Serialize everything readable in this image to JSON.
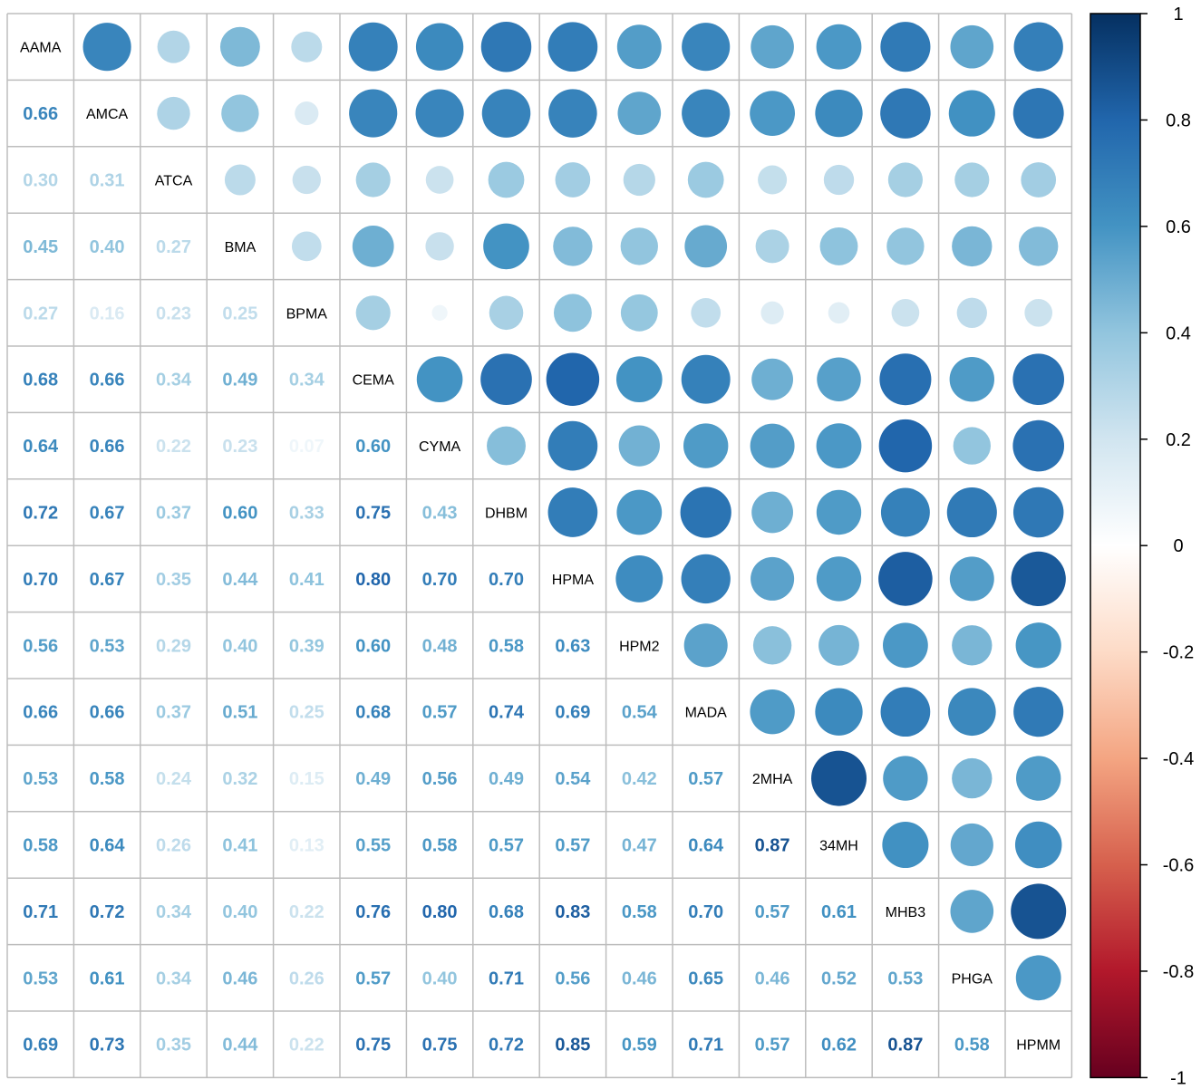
{
  "chart_data": {
    "type": "heatmap",
    "variables": [
      "AAMA",
      "AMCA",
      "ATCA",
      "BMA",
      "BPMA",
      "CEMA",
      "CYMA",
      "DHBM",
      "HPMA",
      "HPM2",
      "MADA",
      "2MHA",
      "34MH",
      "MHB3",
      "PHGA",
      "HPMM"
    ],
    "labels": [
      [],
      [
        "0.66"
      ],
      [
        "0.30",
        "0.31"
      ],
      [
        "0.45",
        "0.40",
        "0.27"
      ],
      [
        "0.27",
        "0.16",
        "0.23",
        "0.25"
      ],
      [
        "0.68",
        "0.66",
        "0.34",
        "0.49",
        "0.34"
      ],
      [
        "0.64",
        "0.66",
        "0.22",
        "0.23",
        "0.07",
        "0.60"
      ],
      [
        "0.72",
        "0.67",
        "0.37",
        "0.60",
        "0.33",
        "0.75",
        "0.43"
      ],
      [
        "0.70",
        "0.67",
        "0.35",
        "0.44",
        "0.41",
        "0.80",
        "0.70",
        "0.70"
      ],
      [
        "0.56",
        "0.53",
        "0.29",
        "0.40",
        "0.39",
        "0.60",
        "0.48",
        "0.58",
        "0.63"
      ],
      [
        "0.66",
        "0.66",
        "0.37",
        "0.51",
        "0.25",
        "0.68",
        "0.57",
        "0.74",
        "0.69",
        "0.54"
      ],
      [
        "0.53",
        "0.58",
        "0.24",
        "0.32",
        "0.15",
        "0.49",
        "0.56",
        "0.49",
        "0.54",
        "0.42",
        "0.57"
      ],
      [
        "0.58",
        "0.64",
        "0.26",
        "0.41",
        "0.13",
        "0.55",
        "0.58",
        "0.57",
        "0.57",
        "0.47",
        "0.64",
        "0.87"
      ],
      [
        "0.71",
        "0.72",
        "0.34",
        "0.40",
        "0.22",
        "0.76",
        "0.80",
        "0.68",
        "0.83",
        "0.58",
        "0.70",
        "0.57",
        "0.61"
      ],
      [
        "0.53",
        "0.61",
        "0.34",
        "0.46",
        "0.26",
        "0.57",
        "0.40",
        "0.71",
        "0.56",
        "0.46",
        "0.65",
        "0.46",
        "0.52",
        "0.53"
      ],
      [
        "0.69",
        "0.73",
        "0.35",
        "0.44",
        "0.22",
        "0.75",
        "0.75",
        "0.72",
        "0.85",
        "0.59",
        "0.71",
        "0.57",
        "0.62",
        "0.87",
        "0.58"
      ]
    ],
    "colorbar": {
      "ticks": [
        "1",
        "0.8",
        "0.6",
        "0.4",
        "0.2",
        "0",
        "-0.2",
        "-0.4",
        "-0.6",
        "-0.8",
        "-1"
      ],
      "range": [
        -1,
        1
      ],
      "colors": [
        "#67001F",
        "#B2182B",
        "#D6604D",
        "#F4A582",
        "#FDDBC7",
        "#FFFFFF",
        "#D1E5F0",
        "#92C5DE",
        "#4393C3",
        "#2166AC",
        "#053061"
      ]
    },
    "grid": true
  }
}
